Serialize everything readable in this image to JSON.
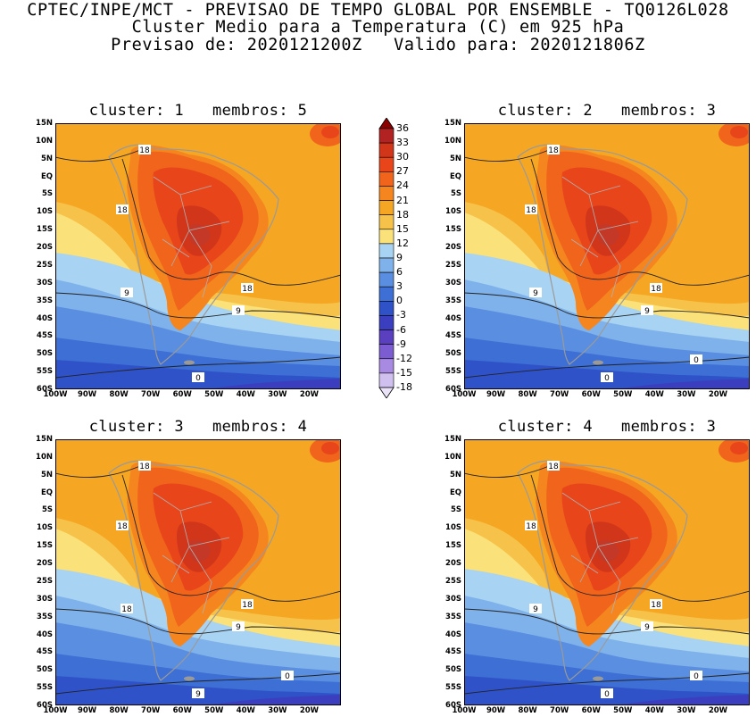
{
  "header": {
    "line1": "CPTEC/INPE/MCT - PREVISAO DE TEMPO GLOBAL POR ENSEMBLE - TQ0126L028",
    "line2": "Cluster Medio para a Temperatura (C) em 925 hPa",
    "line3": "Previsao de: 2020121200Z   Valido para: 2020121806Z"
  },
  "axes": {
    "lat_labels": [
      "15N",
      "10N",
      "5N",
      "EQ",
      "5S",
      "10S",
      "15S",
      "20S",
      "25S",
      "30S",
      "35S",
      "40S",
      "45S",
      "50S",
      "55S",
      "60S"
    ],
    "lon_labels": [
      "100W",
      "90W",
      "80W",
      "70W",
      "60W",
      "50W",
      "40W",
      "30W",
      "20W"
    ],
    "lon_range": [
      -100,
      -10
    ],
    "lat_range": [
      -60,
      15
    ]
  },
  "colorbar": {
    "labels": [
      "36",
      "33",
      "30",
      "27",
      "24",
      "21",
      "18",
      "15",
      "12",
      "9",
      "6",
      "3",
      "0",
      "-3",
      "-6",
      "-9",
      "-12",
      "-15",
      "-18"
    ],
    "colors": [
      "#8b0000",
      "#b22222",
      "#d2361a",
      "#e8461a",
      "#f0641c",
      "#f5861f",
      "#f5a623",
      "#f7c24a",
      "#fae17a",
      "#a9d3f2",
      "#7fb2ea",
      "#5a8ee0",
      "#3d6fd4",
      "#2f52c9",
      "#3b3fbf",
      "#5a3fbf",
      "#7b5cd1",
      "#a88ae3",
      "#cfc0f0",
      "#ebe4f9"
    ]
  },
  "panels": [
    {
      "title": "cluster: 1   membros: 5",
      "contour_labels": [
        "18",
        "18",
        "18",
        "9",
        "9",
        "0"
      ]
    },
    {
      "title": "cluster: 2   membros: 3",
      "contour_labels": [
        "18",
        "18",
        "18",
        "9",
        "9",
        "0",
        "0"
      ]
    },
    {
      "title": "cluster: 3   membros: 4",
      "contour_labels": [
        "18",
        "18",
        "18",
        "18",
        "9",
        "9",
        "0"
      ]
    },
    {
      "title": "cluster: 4   membros: 3",
      "contour_labels": [
        "18",
        "18",
        "18",
        "9",
        "9",
        "0",
        "0"
      ]
    }
  ]
}
